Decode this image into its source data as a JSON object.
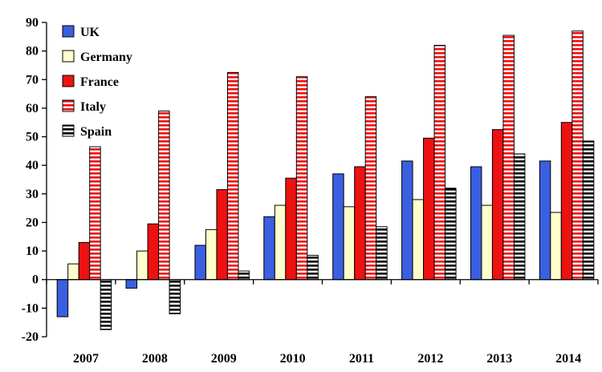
{
  "chart_data": {
    "type": "bar",
    "title": "",
    "xlabel": "",
    "ylabel": "",
    "categories": [
      "2007",
      "2008",
      "2009",
      "2010",
      "2011",
      "2012",
      "2013",
      "2014"
    ],
    "ylim": [
      -20,
      90
    ],
    "yticks": [
      -20,
      -10,
      0,
      10,
      20,
      30,
      40,
      50,
      60,
      70,
      80,
      90
    ],
    "grid": false,
    "legend_position": "top-left",
    "series": [
      {
        "name": "UK",
        "color": "#3a5fe0",
        "pattern": "solid",
        "values": [
          -13,
          -3,
          12,
          22,
          37,
          41.5,
          39.5,
          41.5
        ]
      },
      {
        "name": "Germany",
        "color": "#ffffcc",
        "pattern": "solid",
        "values": [
          5.5,
          10,
          17.5,
          26,
          25.5,
          28,
          26,
          23.5
        ]
      },
      {
        "name": "France",
        "color": "#ee1111",
        "pattern": "solid",
        "values": [
          13,
          19.5,
          31.5,
          35.5,
          39.5,
          49.5,
          52.5,
          55
        ]
      },
      {
        "name": "Italy",
        "color": "#ee1111",
        "pattern": "horizontal-stripes",
        "values": [
          46.5,
          59,
          72.5,
          71,
          64,
          82,
          85.5,
          87
        ]
      },
      {
        "name": "Spain",
        "color": "#000000",
        "pattern": "horizontal-stripes",
        "values": [
          -17.5,
          -12,
          3,
          8.5,
          18.5,
          32,
          44,
          48.5
        ]
      }
    ]
  }
}
